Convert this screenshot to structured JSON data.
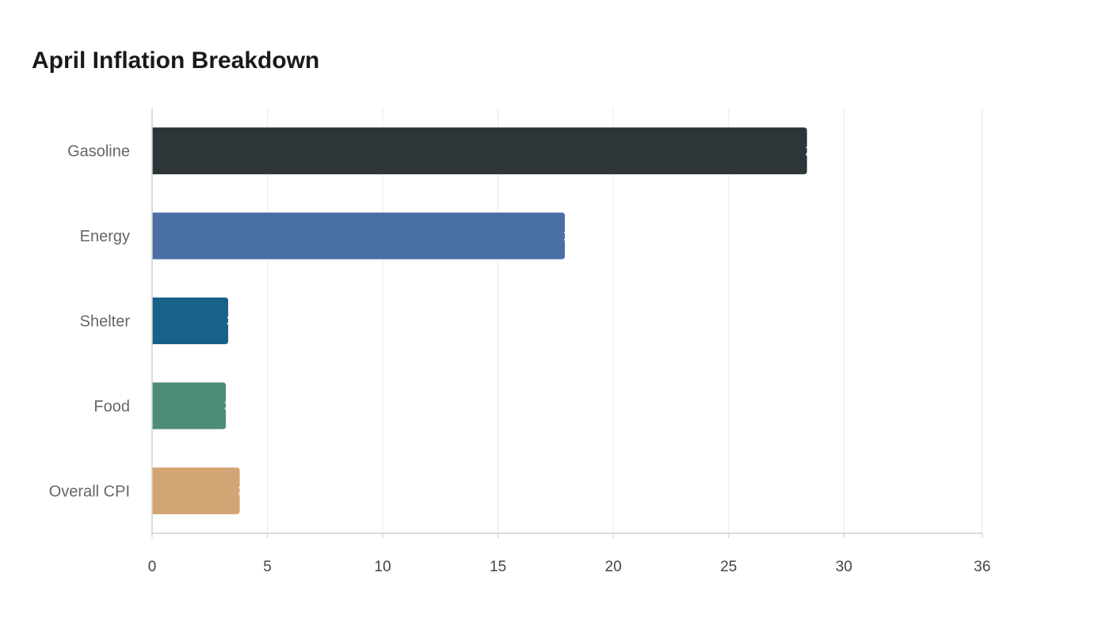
{
  "chart_data": {
    "type": "bar",
    "orientation": "horizontal",
    "title": "April Inflation Breakdown",
    "xlabel": "",
    "ylabel": "",
    "categories": [
      "Gasoline",
      "Energy",
      "Shelter",
      "Food",
      "Overall CPI"
    ],
    "values": [
      28.4,
      17.9,
      3.3,
      3.2,
      3.8
    ],
    "colors": [
      "#2e3538",
      "#4a6fa5",
      "#17618a",
      "#4e8c7a",
      "#d4a574"
    ],
    "xlim": [
      0,
      36
    ],
    "xticks": [
      0,
      5,
      10,
      15,
      20,
      25,
      30,
      36
    ],
    "grid": true,
    "legend": "none"
  }
}
